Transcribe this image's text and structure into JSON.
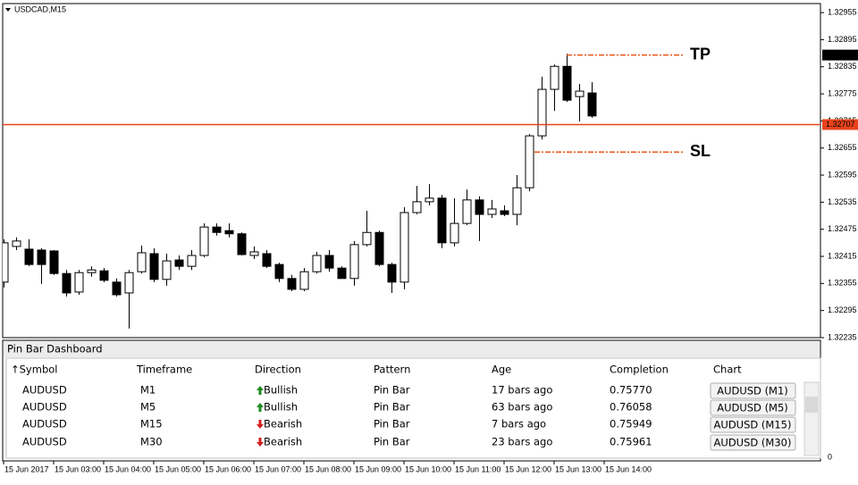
{
  "chart_data": {
    "type": "candlestick",
    "title": "USDCAD,M15",
    "categories": [
      "15 Jun 2017",
      null,
      null,
      null,
      "15 Jun 03:00",
      null,
      null,
      null,
      "15 Jun 04:00",
      null,
      null,
      null,
      "15 Jun 05:00",
      null,
      null,
      null,
      "15 Jun 06:00",
      null,
      null,
      null,
      "15 Jun 07:00",
      null,
      null,
      null,
      "15 Jun 08:00",
      null,
      null,
      null,
      "15 Jun 09:00",
      null,
      null,
      null,
      "15 Jun 10:00",
      null,
      null,
      null,
      "15 Jun 11:00",
      null,
      null,
      null,
      "15 Jun 12:00",
      null,
      null,
      null,
      "15 Jun 13:00",
      null,
      null,
      null,
      "15 Jun 14:00"
    ],
    "open": [
      1.32358,
      1.32437,
      1.32431,
      1.32429,
      1.32427,
      1.32377,
      1.32336,
      1.32379,
      1.32383,
      1.32358,
      1.32334,
      1.32381,
      1.32421,
      1.32364,
      1.32407,
      1.32393,
      1.32417,
      1.3248,
      1.32472,
      1.32465,
      1.32417,
      1.32421,
      1.32397,
      1.32366,
      1.32342,
      1.32381,
      1.32417,
      1.32389,
      1.32366,
      1.32441,
      1.32468,
      1.32397,
      1.32358,
      1.32512,
      1.32536,
      1.32544,
      1.32445,
      1.32488,
      1.3254,
      1.32508,
      1.32516,
      1.32508,
      1.32567,
      1.32682,
      1.32785,
      1.32836,
      1.32769,
      1.32777,
      null
    ],
    "high": [
      1.32453,
      1.32457,
      1.32453,
      1.32433,
      1.32429,
      1.32385,
      1.32385,
      1.32393,
      1.32389,
      1.32366,
      1.32385,
      1.32439,
      1.32433,
      1.32421,
      1.32417,
      1.32429,
      1.32488,
      1.32488,
      1.32488,
      1.32468,
      1.32437,
      1.32429,
      1.32401,
      1.32374,
      1.32389,
      1.32425,
      1.32429,
      1.32393,
      1.32449,
      1.32516,
      1.32472,
      1.32401,
      1.32524,
      1.32571,
      1.32575,
      1.32551,
      1.32544,
      1.32563,
      1.32548,
      1.3254,
      1.32528,
      1.32595,
      1.32686,
      1.32813,
      1.3284,
      1.32864,
      1.32797,
      1.32801,
      null
    ],
    "low": [
      1.32346,
      1.32429,
      1.32393,
      1.32354,
      1.32374,
      1.32326,
      1.3233,
      1.3237,
      1.32358,
      1.32326,
      1.32255,
      1.32377,
      1.32358,
      1.3235,
      1.32385,
      1.32385,
      1.32413,
      1.32461,
      1.32457,
      1.32417,
      1.32409,
      1.32389,
      1.32358,
      1.32338,
      1.32338,
      1.32377,
      1.32381,
      1.32366,
      1.3235,
      1.32437,
      1.32393,
      1.32334,
      1.32342,
      1.32508,
      1.32528,
      1.32433,
      1.32437,
      1.32484,
      1.32449,
      1.325,
      1.32504,
      1.32484,
      1.32559,
      1.32674,
      1.32737,
      1.32757,
      1.32714,
      1.32722,
      null
    ],
    "close": [
      1.32445,
      1.32449,
      1.32397,
      1.32397,
      1.32377,
      1.32334,
      1.32379,
      1.32385,
      1.32362,
      1.3233,
      1.32379,
      1.32423,
      1.32364,
      1.32405,
      1.32393,
      1.32417,
      1.3248,
      1.32468,
      1.32465,
      1.32419,
      1.32425,
      1.32393,
      1.32366,
      1.32342,
      1.32381,
      1.32417,
      1.32389,
      1.32366,
      1.32441,
      1.32468,
      1.32397,
      1.32358,
      1.32512,
      1.32536,
      1.32544,
      1.32445,
      1.32488,
      1.3254,
      1.32508,
      1.3252,
      1.32508,
      1.32567,
      1.32682,
      1.32785,
      1.32836,
      1.32761,
      1.32781,
      1.32726,
      null
    ],
    "bull_color": "#ffffff",
    "bear_color": "#000000",
    "ylim": [
      1.32235,
      1.32975
    ],
    "yticks": [
      1.32955,
      1.32895,
      1.32835,
      1.32775,
      1.32715,
      1.32655,
      1.32595,
      1.32535,
      1.32475,
      1.32415,
      1.32355,
      1.32295,
      1.32235
    ],
    "bid": {
      "value": 1.32707,
      "color": "#e8431b"
    },
    "tp": {
      "label": "TP",
      "value": 1.32861,
      "color": "#e8571b"
    },
    "sl": {
      "label": "SL",
      "value": 1.32646,
      "color": "#e8571b"
    },
    "subwindow_tick": 0
  },
  "dashboard": {
    "title": "Pin Bar Dashboard",
    "headers": [
      "↑Symbol",
      "Timeframe",
      "Direction",
      "Pattern",
      "Age",
      "Completion",
      "Chart"
    ],
    "rows": [
      {
        "cells": [
          "AUDUSD",
          "M1",
          "Bullish",
          "Pin Bar",
          "17 bars ago",
          "0.75770",
          "AUDUSD (M1)"
        ],
        "color": "#2e8b1e",
        "arrow": "up"
      },
      {
        "cells": [
          "AUDUSD",
          "M5",
          "Bullish",
          "Pin Bar",
          "63 bars ago",
          "0.76058",
          "AUDUSD (M5)"
        ],
        "color": "#2e8b1e",
        "arrow": "up"
      },
      {
        "cells": [
          "AUDUSD",
          "M15",
          "Bearish",
          "Pin Bar",
          "7 bars ago",
          "0.75949",
          "AUDUSD (M15)"
        ],
        "color": "#9b1010",
        "arrow": "down"
      },
      {
        "cells": [
          "AUDUSD",
          "M30",
          "Bearish",
          "Pin Bar",
          "23 bars ago",
          "0.75961",
          "AUDUSD (M30)"
        ],
        "color": "#9b1010",
        "arrow": "down"
      }
    ]
  }
}
